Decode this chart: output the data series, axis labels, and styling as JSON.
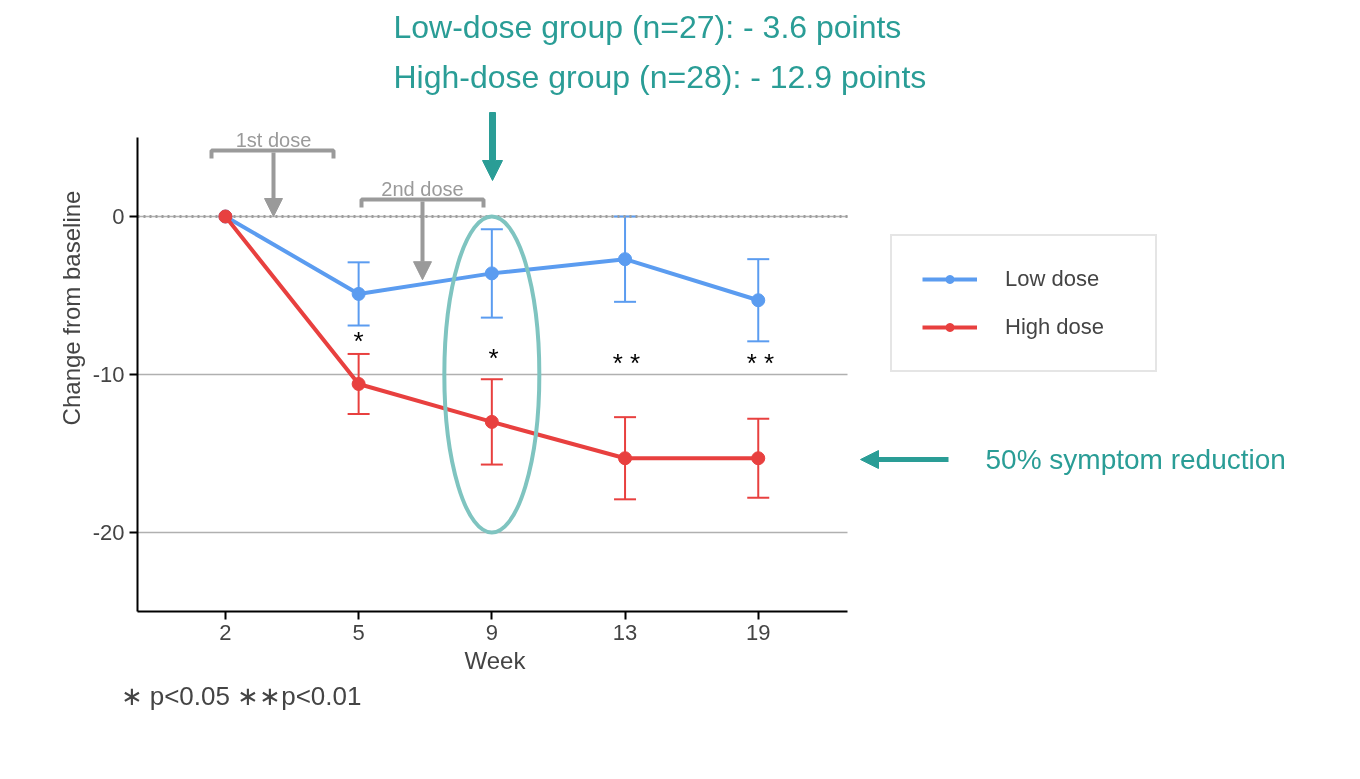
{
  "chart_data": {
    "type": "line",
    "xlabel": "Week",
    "ylabel": "Change from baseline",
    "categories": [
      "2",
      "5",
      "9",
      "13",
      "19"
    ],
    "series": [
      {
        "name": "Low dose",
        "color": "#5b9cf0",
        "values": [
          0,
          -4.9,
          -3.6,
          -2.7,
          -5.3
        ],
        "errors": [
          null,
          2.0,
          2.8,
          2.7,
          2.6
        ]
      },
      {
        "name": "High dose",
        "color": "#e8403f",
        "values": [
          0,
          -10.6,
          -13.0,
          -15.3,
          -15.3
        ],
        "errors": [
          null,
          1.9,
          2.7,
          2.6,
          2.5
        ]
      }
    ],
    "ylim": [
      -25,
      5
    ],
    "yticks": [
      0,
      -10,
      -20
    ],
    "grid": "y",
    "legend": "right",
    "marker": "circle",
    "line_style": "solid",
    "ref_lines": [
      {
        "axis": "y",
        "value": 0,
        "color": "#9e9e9e",
        "line_style": "dotted"
      }
    ],
    "annotations": [
      "Low-dose group (n=27): - 3.6 points",
      "High-dose group (n=28): - 12.9 points",
      {
        "text": "1st dose",
        "y": 0
      },
      {
        "text": "2nd dose",
        "y": -4
      },
      "50% symptom reduction",
      "∗ p<0.05 ∗∗p<0.01",
      "*",
      "*",
      "* *",
      "* *"
    ]
  }
}
